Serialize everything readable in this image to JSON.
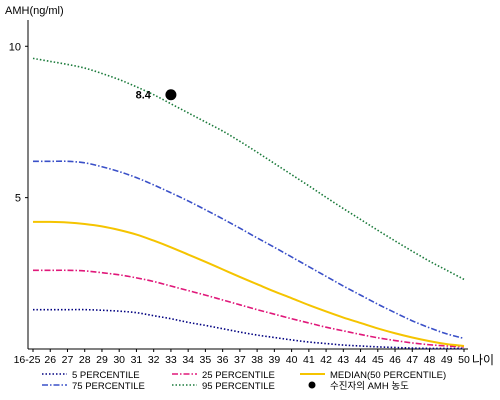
{
  "chart_data": {
    "type": "line",
    "ylabel": "AMH(ng/ml)",
    "xlabel": "나이",
    "ylim": [
      0,
      11
    ],
    "y_ticks": [
      5,
      10
    ],
    "categories": [
      "16-25",
      "26",
      "27",
      "28",
      "29",
      "30",
      "31",
      "32",
      "33",
      "34",
      "35",
      "36",
      "37",
      "38",
      "39",
      "40",
      "41",
      "42",
      "43",
      "44",
      "45",
      "46",
      "47",
      "48",
      "49",
      "50"
    ],
    "series": [
      {
        "name": "5 PERCENTILE",
        "color": "#000080",
        "dash": "dotted",
        "values": [
          1.3,
          1.3,
          1.3,
          1.3,
          1.28,
          1.25,
          1.2,
          1.1,
          1.0,
          0.88,
          0.78,
          0.67,
          0.56,
          0.46,
          0.38,
          0.3,
          0.23,
          0.18,
          0.13,
          0.1,
          0.07,
          0.05,
          0.03,
          0.02,
          0.02,
          0.02
        ]
      },
      {
        "name": "25 PERCENTILE",
        "color": "#e0187a",
        "dash": "dashdot",
        "values": [
          2.6,
          2.6,
          2.6,
          2.58,
          2.52,
          2.45,
          2.35,
          2.23,
          2.08,
          1.93,
          1.78,
          1.62,
          1.46,
          1.3,
          1.15,
          1.0,
          0.86,
          0.72,
          0.6,
          0.48,
          0.37,
          0.28,
          0.2,
          0.14,
          0.1,
          0.07
        ]
      },
      {
        "name": "MEDIAN(50 PERCENTILE)",
        "color": "#f5c400",
        "dash": "solid",
        "values": [
          4.2,
          4.2,
          4.18,
          4.13,
          4.05,
          3.93,
          3.78,
          3.58,
          3.36,
          3.12,
          2.88,
          2.63,
          2.38,
          2.14,
          1.9,
          1.68,
          1.45,
          1.24,
          1.04,
          0.86,
          0.68,
          0.52,
          0.38,
          0.26,
          0.16,
          0.1
        ]
      },
      {
        "name": "75 PERCENTILE",
        "color": "#3a50c8",
        "dash": "dashdot",
        "values": [
          6.2,
          6.2,
          6.2,
          6.15,
          6.02,
          5.86,
          5.66,
          5.42,
          5.16,
          4.89,
          4.6,
          4.3,
          3.99,
          3.67,
          3.36,
          3.04,
          2.72,
          2.4,
          2.08,
          1.78,
          1.48,
          1.2,
          0.93,
          0.7,
          0.5,
          0.35
        ]
      },
      {
        "name": "95 PERCENTILE",
        "color": "#1a7a3a",
        "dash": "dotted",
        "values": [
          9.6,
          9.5,
          9.4,
          9.28,
          9.1,
          8.9,
          8.66,
          8.4,
          8.1,
          7.8,
          7.5,
          7.2,
          6.86,
          6.5,
          6.13,
          5.76,
          5.39,
          5.01,
          4.64,
          4.28,
          3.92,
          3.57,
          3.23,
          2.9,
          2.6,
          2.3
        ]
      }
    ],
    "patient_point": {
      "name": "수진자의 AMH 농도",
      "x": "33",
      "y": 8.4,
      "label": "8.4",
      "color": "#000000"
    },
    "legend_placement": "bottom",
    "grid": false
  }
}
